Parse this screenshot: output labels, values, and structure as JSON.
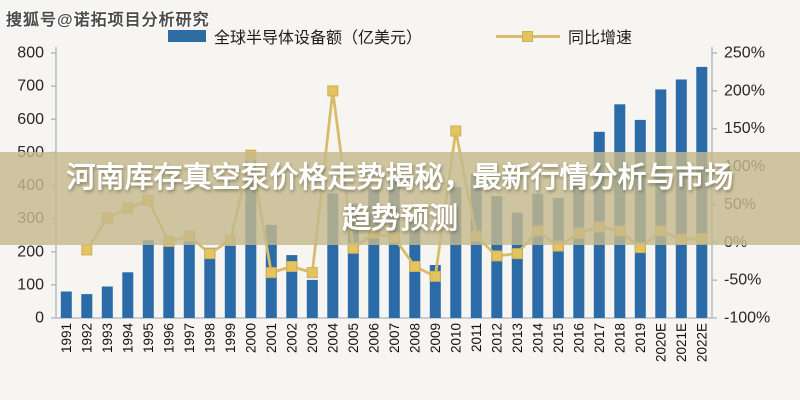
{
  "watermark": "搜狐号@诺拓项目分析研究",
  "overlay": {
    "title_line1": "河南库存真空泵价格走势揭秘，最新行情分析与市场",
    "title_line2": "趋势预测"
  },
  "legend": {
    "bar_label": "全球半导体设备额（亿美元）",
    "line_label": "同比增速"
  },
  "colors": {
    "bar": "#2b6ca8",
    "line": "#d8bc69",
    "marker_fill": "#e3c45f",
    "marker_stroke": "#cfae54",
    "axis": "#a9b4bf",
    "axis_text": "#262626",
    "overlay_band": "rgba(197,186,141,0.82)"
  },
  "chart_data": {
    "type": "bar",
    "subtype": "bar+line combo, dual axis",
    "categories": [
      "1991",
      "1992",
      "1993",
      "1994",
      "1995",
      "1996",
      "1997",
      "1998",
      "1999",
      "2000",
      "2001",
      "2002",
      "2003",
      "2004",
      "2005",
      "2006",
      "2007",
      "2008",
      "2009",
      "2010",
      "2011",
      "2012",
      "2013",
      "2014",
      "2015",
      "2016",
      "2017",
      "2018",
      "2019",
      "2020E",
      "2021E",
      "2022E"
    ],
    "series": [
      {
        "name": "全球半导体设备额（亿美元）",
        "type": "bar",
        "axis": "left",
        "values": [
          80,
          72,
          95,
          138,
          235,
          238,
          258,
          212,
          218,
          477,
          281,
          190,
          115,
          376,
          345,
          390,
          415,
          290,
          160,
          395,
          435,
          368,
          318,
          375,
          362,
          410,
          562,
          645,
          598,
          690,
          720,
          758
        ]
      },
      {
        "name": "同比增速",
        "type": "line",
        "axis": "right",
        "values": [
          null,
          -10,
          32,
          45,
          55,
          1,
          8,
          -15,
          3,
          115,
          -40,
          -32,
          -40,
          200,
          -8,
          12,
          6,
          -32,
          -45,
          147,
          8,
          -18,
          -15,
          15,
          -5,
          12,
          20,
          15,
          -7,
          15,
          4,
          5
        ]
      }
    ],
    "left_axis": {
      "min": 0,
      "max": 800,
      "ticks": [
        "800",
        "700",
        "600",
        "500",
        "400",
        "300",
        "200",
        "100",
        "0"
      ]
    },
    "right_axis": {
      "min": -100,
      "max": 250,
      "ticks": [
        "250%",
        "200%",
        "150%",
        "100%",
        "50%",
        "0%",
        "-50%",
        "-100%"
      ]
    },
    "grid": false,
    "legend_position": "top-center",
    "x_tick_rotation": -90
  }
}
